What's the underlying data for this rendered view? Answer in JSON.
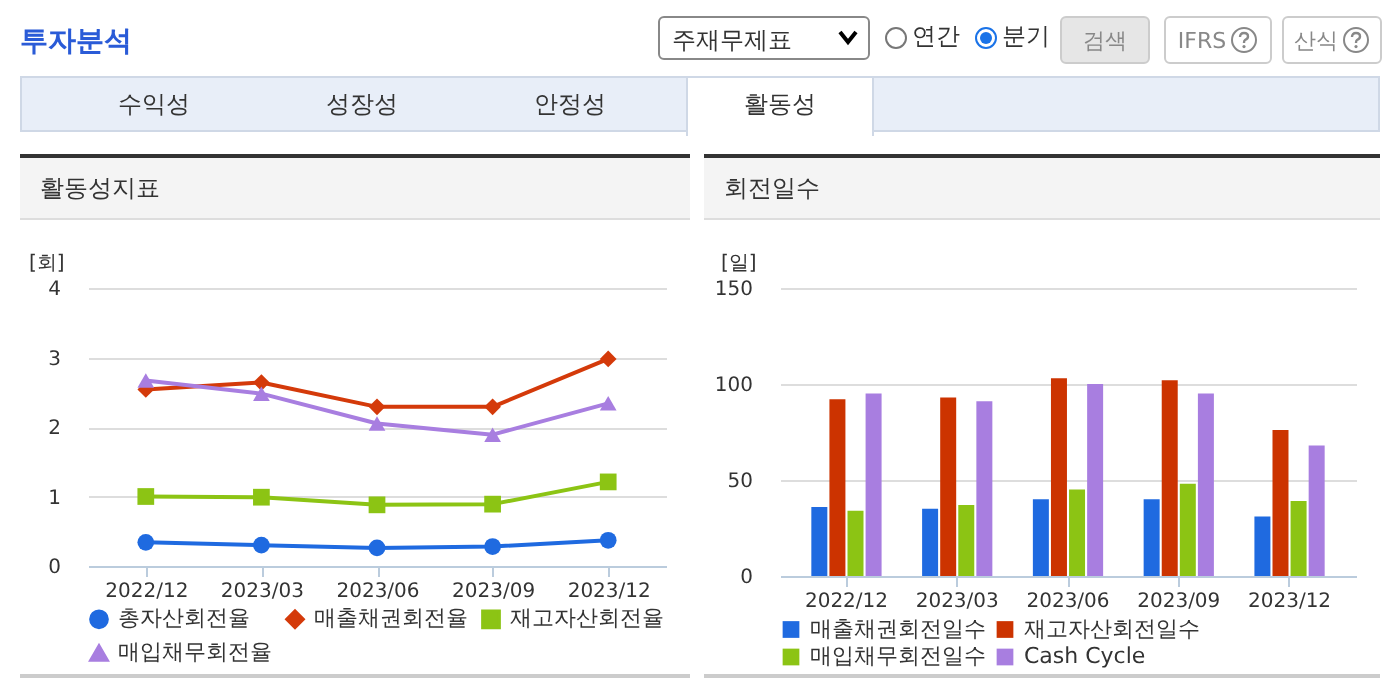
{
  "chart_data": [
    {
      "type": "other",
      "title": "투자분석",
      "annotations": [
        "주재무제표",
        "연간",
        "분기",
        "검색",
        "IFRS",
        "산식",
        "수익성",
        "성장성",
        "안정성",
        "활동성"
      ]
    },
    {
      "type": "line",
      "title": "활동성지표",
      "ylabel": "[회]",
      "categories": [
        "2022/12",
        "2023/03",
        "2023/06",
        "2023/09",
        "2023/12"
      ],
      "ylim": [
        0,
        4
      ],
      "yticks": [
        0,
        1,
        2,
        3,
        4
      ],
      "grid": "y",
      "legend": "bottom",
      "line_style": "solid",
      "series": [
        {
          "name": "총자산회전율",
          "color": "#1f6ae0",
          "marker": "circle",
          "values": [
            0.34,
            0.3,
            0.26,
            0.28,
            0.37
          ]
        },
        {
          "name": "매출채권회전율",
          "color": "#d43a0a",
          "marker": "diamond",
          "values": [
            2.54,
            2.64,
            2.29,
            2.29,
            2.98
          ]
        },
        {
          "name": "재고자산회전율",
          "color": "#8cc414",
          "marker": "square",
          "values": [
            1.0,
            0.99,
            0.88,
            0.89,
            1.21
          ]
        },
        {
          "name": "매입채무회전율",
          "color": "#a87ee0",
          "marker": "triangle",
          "values": [
            2.67,
            2.48,
            2.05,
            1.89,
            2.34
          ]
        }
      ]
    },
    {
      "type": "bar",
      "title": "회전일수",
      "ylabel": "[일]",
      "categories": [
        "2022/12",
        "2023/03",
        "2023/06",
        "2023/09",
        "2023/12"
      ],
      "ylim": [
        0,
        150
      ],
      "yticks": [
        0,
        50,
        100,
        150
      ],
      "grid": "y",
      "legend": "bottom",
      "series": [
        {
          "name": "매출채권회전일수",
          "color": "#1f6ae0",
          "values": [
            36,
            35,
            40,
            40,
            31
          ]
        },
        {
          "name": "재고자산회전일수",
          "color": "#cc3300",
          "values": [
            92,
            93,
            103,
            102,
            76
          ]
        },
        {
          "name": "매입채무회전일수",
          "color": "#8cc414",
          "values": [
            34,
            37,
            45,
            48,
            39
          ]
        },
        {
          "name": "Cash Cycle",
          "color": "#a87ee0",
          "values": [
            95,
            91,
            100,
            95,
            68
          ]
        }
      ]
    }
  ]
}
